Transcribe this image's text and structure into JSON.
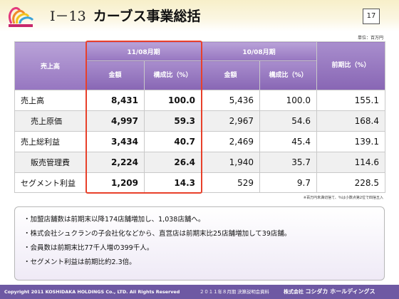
{
  "header": {
    "section": "Ⅰ－13",
    "title": "カーブス事業総括",
    "page_number": "17"
  },
  "unit_label": "単位：百万円",
  "table": {
    "row_header": "売上高",
    "period_current": "11/08月期",
    "period_previous": "10/08月期",
    "col_amount": "金額",
    "col_ratio": "構成比（%）",
    "col_yoy": "前期比（%）",
    "rows": [
      {
        "label": "売上高",
        "cur_amount": "8,431",
        "cur_ratio": "100.0",
        "prev_amount": "5,436",
        "prev_ratio": "100.0",
        "yoy": "155.1"
      },
      {
        "label": "売上原価",
        "cur_amount": "4,997",
        "cur_ratio": "59.3",
        "prev_amount": "2,967",
        "prev_ratio": "54.6",
        "yoy": "168.4"
      },
      {
        "label": "売上総利益",
        "cur_amount": "3,434",
        "cur_ratio": "40.7",
        "prev_amount": "2,469",
        "prev_ratio": "45.4",
        "yoy": "139.1"
      },
      {
        "label": "販売管理費",
        "cur_amount": "2,224",
        "cur_ratio": "26.4",
        "prev_amount": "1,940",
        "prev_ratio": "35.7",
        "yoy": "114.6"
      },
      {
        "label": "セグメント利益",
        "cur_amount": "1,209",
        "cur_ratio": "14.3",
        "prev_amount": "529",
        "prev_ratio": "9.7",
        "yoy": "228.5"
      }
    ]
  },
  "footnote": "※百万円未満切捨て、％は小数点第2位で四捨五入",
  "bullets": [
    "・加盟店舗数は前期末以降174店舗増加し、1,038店舗へ。",
    "・株式会社シュクランの子会社化などから、直営店は前期末比25店舗増加して39店舗。",
    "・会員数は前期末比77千人増の399千人。",
    "・セグメント利益は前期比約2.3倍。"
  ],
  "footer": {
    "copyright": "Copyright 2011 KOSHIDAKA HOLDINGS Co., LTD. All Rights Reserved",
    "document": "２０１１年８月期 決算説明会資料",
    "company_prefix": "株式会社",
    "company_name": "コシダカ ホールディングス"
  },
  "colors": {
    "header_purple": "#9676c0",
    "footer_purple": "#6e59a3",
    "highlight_red": "#e8402a"
  }
}
